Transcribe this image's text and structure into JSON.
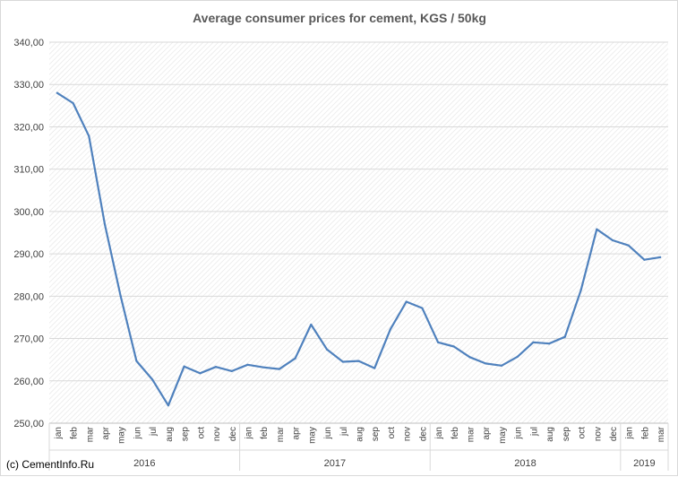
{
  "chart_data": {
    "type": "line",
    "title": "Average consumer prices for cement, KGS / 50kg",
    "xlabel": "",
    "ylabel": "",
    "ylim": [
      250,
      340
    ],
    "ytick_step": 10,
    "ytick_labels": [
      "250,00",
      "260,00",
      "270,00",
      "280,00",
      "290,00",
      "300,00",
      "310,00",
      "320,00",
      "330,00",
      "340,00"
    ],
    "grid": true,
    "legend": "none",
    "categories": [
      "jan",
      "feb",
      "mar",
      "apr",
      "may",
      "jun",
      "jul",
      "aug",
      "sep",
      "oct",
      "nov",
      "dec",
      "jan",
      "feb",
      "mar",
      "apr",
      "may",
      "jun",
      "jul",
      "aug",
      "sep",
      "oct",
      "nov",
      "dec",
      "jan",
      "feb",
      "mar",
      "apr",
      "may",
      "jun",
      "jul",
      "aug",
      "sep",
      "oct",
      "nov",
      "dec",
      "jan",
      "feb",
      "mar"
    ],
    "years": [
      {
        "label": "2016",
        "count": 12
      },
      {
        "label": "2017",
        "count": 12
      },
      {
        "label": "2018",
        "count": 12
      },
      {
        "label": "2019",
        "count": 3
      }
    ],
    "series": [
      {
        "values": [
          328.0,
          325.6,
          317.8,
          297.0,
          280.0,
          264.7,
          260.3,
          254.2,
          263.4,
          261.8,
          263.3,
          262.3,
          263.8,
          263.2,
          262.8,
          265.3,
          273.3,
          267.4,
          264.5,
          264.7,
          263.0,
          272.2,
          278.7,
          277.2,
          269.1,
          268.1,
          265.6,
          264.1,
          263.6,
          265.7,
          269.1,
          268.8,
          270.4,
          281.4,
          295.8,
          293.2,
          292.0,
          288.6,
          289.2
        ],
        "color": "#4f81bd"
      }
    ]
  },
  "footer": {
    "copyright": "(c) CementInfo.Ru"
  }
}
